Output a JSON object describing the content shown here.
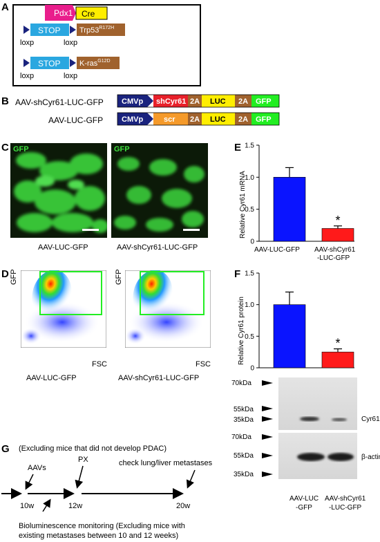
{
  "panel_letters": {
    "A": "A",
    "B": "B",
    "C": "C",
    "D": "D",
    "E": "E",
    "F": "F",
    "G": "G"
  },
  "panel_a": {
    "pdx1": "Pdx1",
    "cre": "Cre",
    "stop": "STOP",
    "trp53": "Trp53",
    "trp53_sup": "R172H",
    "kras": "K-ras",
    "kras_sup": "G12D",
    "loxp": "loxp"
  },
  "panel_b": {
    "construct1_name": "AAV-shCyr61-LUC-GFP",
    "construct2_name": "AAV-LUC-GFP",
    "cmvp": "CMVp",
    "shcyr61": "shCyr61",
    "scr": "scr",
    "twoA": "2A",
    "luc": "LUC",
    "gfp": "GFP"
  },
  "panel_c": {
    "image_label": "GFP",
    "left_caption": "AAV-LUC-GFP",
    "right_caption": "AAV-shCyr61-LUC-GFP"
  },
  "panel_d": {
    "y_axis": "GFP",
    "x_axis": "FSC",
    "left_caption": "AAV-LUC-GFP",
    "right_caption": "AAV-shCyr61-LUC-GFP"
  },
  "panel_e": {
    "ylabel": "Relative Cyr61 mRNA",
    "tick_labels": [
      "0",
      "0.5",
      "1.0",
      "1.5"
    ],
    "cat1_label": "AAV-LUC-GFP",
    "cat2_label_line1": "AAV-shCyr61",
    "cat2_label_line2": "-LUC-GFP",
    "significance": "*"
  },
  "panel_f": {
    "ylabel": "Relative Cyr61 protein",
    "tick_labels": [
      "0",
      "0.5",
      "1.0",
      "1.5"
    ],
    "significance": "*",
    "blot_top_markers": [
      "70kDa",
      "55kDa",
      "35kDa"
    ],
    "blot_bottom_markers": [
      "70kDa",
      "55kDa",
      "35kDa"
    ],
    "band_top": "Cyr61",
    "band_bottom": "β-actin",
    "lane1_line1": "AAV-LUC",
    "lane1_line2": "-GFP",
    "lane2_line1": "AAV-shCyr61",
    "lane2_line2": "-LUC-GFP"
  },
  "panel_g": {
    "note_top": "(Excluding mice that did not develop PDAC)",
    "aavs": "AAVs",
    "px": "PX",
    "check": "check lung/liver metastases",
    "t1": "10w",
    "t2": "12w",
    "t3": "20w",
    "biolum_line1": "Bioluminescence monitoring (Excluding mice with",
    "biolum_line2": "existing metastases between 10 and 12 weeks)"
  },
  "colors": {
    "blue_bar": "#0a14ff",
    "red_bar": "#ff1a1a",
    "cmvp": "#1a237e",
    "pink": "#e91e8c",
    "yellow": "#ffee00",
    "sky": "#2aa7e0",
    "brown": "#a0622d",
    "green": "#22ee22",
    "orange": "#f59a2a",
    "red_box": "#e8202a"
  },
  "chart_data": [
    {
      "type": "bar",
      "title": "",
      "xlabel": "",
      "ylabel": "Relative Cyr61 mRNA",
      "categories": [
        "AAV-LUC-GFP",
        "AAV-shCyr61-LUC-GFP"
      ],
      "values": [
        1.0,
        0.2
      ],
      "errors": [
        0.15,
        0.04
      ],
      "ylim": [
        0,
        1.5
      ],
      "yticks": [
        0,
        0.5,
        1.0,
        1.5
      ],
      "bar_colors": [
        "#0a14ff",
        "#ff1a1a"
      ]
    },
    {
      "type": "bar",
      "title": "",
      "xlabel": "",
      "ylabel": "Relative Cyr61 protein",
      "categories": [
        "AAV-LUC-GFP",
        "AAV-shCyr61-LUC-GFP"
      ],
      "values": [
        1.0,
        0.25
      ],
      "errors": [
        0.2,
        0.05
      ],
      "ylim": [
        0,
        1.5
      ],
      "yticks": [
        0,
        0.5,
        1.0,
        1.5
      ],
      "bar_colors": [
        "#0a14ff",
        "#ff1a1a"
      ]
    }
  ]
}
